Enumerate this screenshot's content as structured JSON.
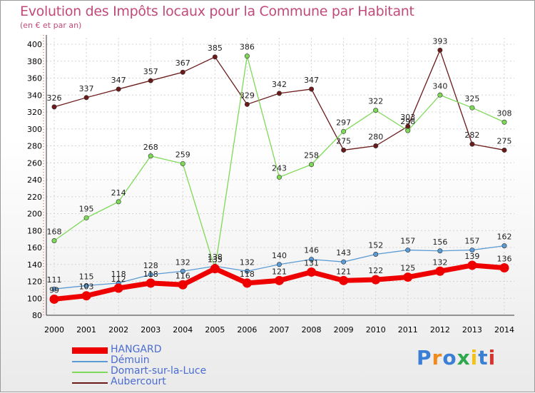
{
  "chart_data": {
    "type": "line",
    "title": "Evolution des Impôts locaux pour la Commune par Habitant",
    "subtitle": "(en € et par an)",
    "categories": [
      "2000",
      "2001",
      "2002",
      "2003",
      "2004",
      "2005",
      "2006",
      "2007",
      "2008",
      "2009",
      "2010",
      "2011",
      "2012",
      "2013",
      "2014"
    ],
    "yticks": [
      80,
      100,
      120,
      140,
      160,
      180,
      200,
      220,
      240,
      260,
      280,
      300,
      320,
      340,
      360,
      380,
      400
    ],
    "ylim": [
      80,
      400
    ],
    "grid": true,
    "legend_position": "bottom-left",
    "series": [
      {
        "name": "Aubercourt",
        "color": "#6b1a1a",
        "marker": "#6b1a1a",
        "values": [
          326,
          337,
          347,
          357,
          367,
          385,
          329,
          342,
          347,
          275,
          280,
          303,
          393,
          282,
          275
        ]
      },
      {
        "name": "Domart-sur-la-Luce",
        "color": "#7ed957",
        "marker": "#7ed957",
        "values": [
          168,
          195,
          214,
          268,
          259,
          135,
          386,
          243,
          258,
          297,
          322,
          298,
          340,
          325,
          308
        ]
      },
      {
        "name": "Démuin",
        "color": "#5b9bd5",
        "marker": "#5b9bd5",
        "values": [
          111,
          115,
          118,
          128,
          132,
          138,
          132,
          140,
          146,
          143,
          152,
          157,
          156,
          157,
          162
        ]
      },
      {
        "name": "HANGARD",
        "color": "#ee0000",
        "marker": "#ee0000",
        "values": [
          99,
          103,
          112,
          118,
          116,
          135,
          118,
          121,
          131,
          121,
          122,
          125,
          132,
          139,
          136
        ]
      }
    ]
  },
  "legend": {
    "items": [
      {
        "label": "HANGARD",
        "color": "#ee0000"
      },
      {
        "label": "Démuin",
        "color": "#5b9bd5"
      },
      {
        "label": "Domart-sur-la-Luce",
        "color": "#7ed957"
      },
      {
        "label": "Aubercourt",
        "color": "#6b1a1a"
      }
    ]
  },
  "brand": {
    "letters": [
      "P",
      "r",
      "o",
      "x",
      "i",
      "t",
      "i"
    ],
    "colors": [
      "#3a7fd5",
      "#f08a1c",
      "#3a7fd5",
      "#2ea84a",
      "#f2c21b",
      "#3a7fd5",
      "#d9342b"
    ]
  }
}
